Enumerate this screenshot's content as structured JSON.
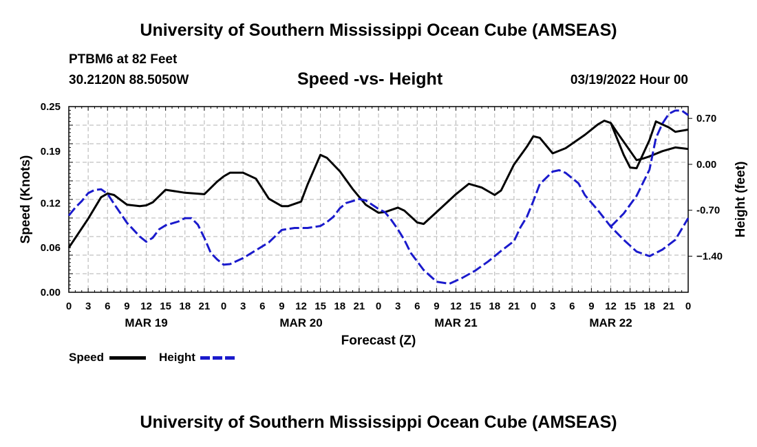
{
  "header": {
    "title": "University of Southern Mississippi Ocean Cube (AMSEAS)",
    "station": "PTBM6 at 82 Feet",
    "coords": "30.2120N  88.5050W",
    "subtitle": "Speed -vs- Height",
    "run": "03/19/2022 Hour 00"
  },
  "footer": {
    "title": "University of Southern Mississippi Ocean Cube (AMSEAS)"
  },
  "legend": {
    "speed_label": "Speed",
    "height_label": "Height"
  },
  "colors": {
    "speed": "#000000",
    "height": "#1a1acc",
    "grid": "#b0b0b0"
  },
  "chart_data": {
    "type": "line",
    "title": "Speed -vs- Height",
    "xlabel": "Forecast (Z)",
    "ylabel": "Speed (Knots)",
    "y2label": "Height (feet)",
    "xlim": [
      0,
      96
    ],
    "ylim": [
      0,
      0.25
    ],
    "y2lim": [
      -1.95,
      0.88
    ],
    "x_ticks": [
      0,
      3,
      6,
      9,
      12,
      15,
      18,
      21,
      24,
      27,
      30,
      33,
      36,
      39,
      42,
      45,
      48,
      51,
      54,
      57,
      60,
      63,
      66,
      69,
      72,
      75,
      78,
      81,
      84,
      87,
      90,
      93,
      96
    ],
    "x_tick_labels": [
      "0",
      "3",
      "6",
      "9",
      "12",
      "15",
      "18",
      "21",
      "0",
      "3",
      "6",
      "9",
      "12",
      "15",
      "18",
      "21",
      "0",
      "3",
      "6",
      "9",
      "12",
      "15",
      "18",
      "21",
      "0",
      "3",
      "6",
      "9",
      "12",
      "15",
      "18",
      "21",
      "0"
    ],
    "date_labels": [
      {
        "x": 12,
        "label": "MAR 19"
      },
      {
        "x": 36,
        "label": "MAR 20"
      },
      {
        "x": 60,
        "label": "MAR 21"
      },
      {
        "x": 84,
        "label": "MAR 22"
      }
    ],
    "y_ticks": [
      0.0,
      0.06,
      0.12,
      0.19,
      0.25
    ],
    "y_tick_labels": [
      "0.00",
      "0.06",
      "0.12",
      "0.19",
      "0.25"
    ],
    "y2_ticks": [
      0.7,
      0.0,
      -0.7,
      -1.4
    ],
    "y2_tick_labels": [
      "0.70",
      "0.00",
      "-0.70",
      "−1.40"
    ],
    "series": [
      {
        "name": "Speed",
        "axis": "left",
        "style": "solid",
        "x": [
          0,
          3,
          5,
          6,
          7,
          9,
          11,
          12,
          13,
          15,
          18,
          21,
          23,
          24,
          25,
          27,
          29,
          31,
          33,
          34,
          36,
          37,
          39,
          40,
          42,
          44,
          46,
          48,
          49,
          51,
          52,
          54,
          55,
          57,
          59,
          60,
          62,
          64,
          66,
          67,
          69,
          71,
          72,
          73,
          75,
          77,
          80,
          82,
          83,
          84,
          85,
          88,
          89,
          90,
          92,
          94,
          96
        ],
        "values": [
          0.06,
          0.099,
          0.128,
          0.133,
          0.131,
          0.118,
          0.116,
          0.117,
          0.121,
          0.138,
          0.134,
          0.132,
          0.149,
          0.156,
          0.161,
          0.161,
          0.153,
          0.126,
          0.116,
          0.116,
          0.122,
          0.145,
          0.185,
          0.181,
          0.163,
          0.139,
          0.118,
          0.107,
          0.108,
          0.114,
          0.11,
          0.094,
          0.092,
          0.108,
          0.124,
          0.132,
          0.146,
          0.141,
          0.131,
          0.137,
          0.172,
          0.196,
          0.21,
          0.208,
          0.187,
          0.194,
          0.212,
          0.226,
          0.231,
          0.228,
          0.215,
          0.178,
          0.18,
          0.183,
          0.19,
          0.195,
          0.193
        ],
        "x2": [
          84,
          86,
          87,
          88,
          90,
          91,
          93,
          94,
          96
        ],
        "values2": [
          0.228,
          0.185,
          0.168,
          0.167,
          0.205,
          0.23,
          0.222,
          0.216,
          0.219
        ]
      },
      {
        "name": "Height",
        "axis": "right",
        "style": "dashed",
        "x": [
          0,
          1,
          2,
          3,
          4,
          5,
          6,
          7,
          9,
          11,
          12,
          13,
          14,
          15,
          17,
          18,
          19,
          20,
          21,
          22,
          23,
          24,
          25,
          27,
          29,
          31,
          33,
          35,
          36,
          37,
          39,
          40,
          41,
          42,
          43,
          44,
          45,
          46,
          48,
          49,
          50,
          51,
          52,
          53,
          55,
          57,
          59,
          61,
          63,
          65,
          67,
          69,
          70,
          71,
          72,
          73,
          75,
          76,
          77,
          79,
          80,
          82,
          84,
          86,
          88,
          90,
          92,
          94,
          96
        ],
        "values": [
          -0.78,
          -0.66,
          -0.56,
          -0.44,
          -0.39,
          -0.38,
          -0.45,
          -0.6,
          -0.89,
          -1.1,
          -1.18,
          -1.12,
          -0.99,
          -0.93,
          -0.87,
          -0.82,
          -0.82,
          -0.92,
          -1.12,
          -1.35,
          -1.45,
          -1.53,
          -1.52,
          -1.43,
          -1.31,
          -1.19,
          -1.0,
          -0.97,
          -0.97,
          -0.97,
          -0.94,
          -0.88,
          -0.8,
          -0.67,
          -0.59,
          -0.56,
          -0.53,
          -0.55,
          -0.68,
          -0.73,
          -0.85,
          -0.99,
          -1.15,
          -1.35,
          -1.61,
          -1.79,
          -1.82,
          -1.73,
          -1.62,
          -1.48,
          -1.32,
          -1.17,
          -0.96,
          -0.8,
          -0.56,
          -0.3,
          -0.11,
          -0.09,
          -0.13,
          -0.29,
          -0.47,
          -0.7,
          -0.95,
          -1.15,
          -1.33,
          -1.4,
          -1.3,
          -1.15,
          -0.82
        ],
        "x2": [
          84,
          86,
          88,
          90,
          91,
          92,
          93,
          94,
          95,
          96
        ],
        "values2": [
          -0.95,
          -0.75,
          -0.48,
          -0.08,
          0.4,
          0.62,
          0.77,
          0.82,
          0.82,
          0.75
        ]
      }
    ]
  }
}
